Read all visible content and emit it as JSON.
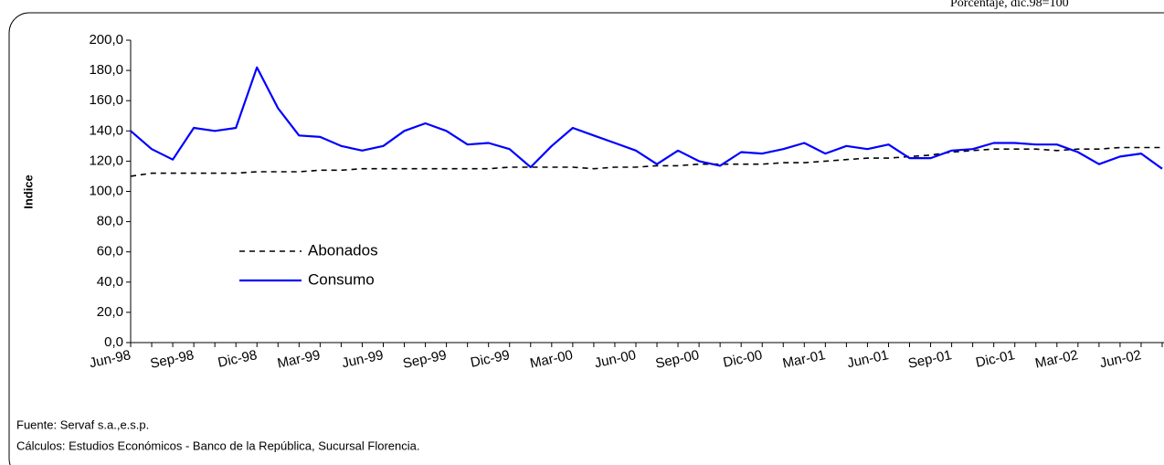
{
  "chart_data": {
    "type": "line",
    "note": "Porcentaje, dic.98=100",
    "y_label": "Indice",
    "source": "Fuente: Servaf s.a.,e.s.p.",
    "calculations": "Cálculos:  Estudios Económicos - Banco de la República, Sucursal Florencia.",
    "categories": [
      "Jun-98",
      null,
      null,
      "Sep-98",
      null,
      null,
      "Dic-98",
      null,
      null,
      "Mar-99",
      null,
      null,
      "Jun-99",
      null,
      null,
      "Sep-99",
      null,
      null,
      "Dic-99",
      null,
      null,
      "Mar-00",
      null,
      null,
      "Jun-00",
      null,
      null,
      "Sep-00",
      null,
      null,
      "Dic-00",
      null,
      null,
      "Mar-01",
      null,
      null,
      "Jun-01",
      null,
      null,
      "Sep-01",
      null,
      null,
      "Dic-01",
      null,
      null,
      "Mar-02",
      null,
      null,
      "Jun-02",
      null
    ],
    "series": [
      {
        "name": "Abonados",
        "color": "#000000",
        "style": "dashed",
        "values": [
          110,
          112,
          112,
          112,
          112,
          112,
          113,
          113,
          113,
          114,
          114,
          115,
          115,
          115,
          115,
          115,
          115,
          115,
          116,
          116,
          116,
          116,
          115,
          116,
          116,
          117,
          117,
          118,
          118,
          118,
          118,
          119,
          119,
          120,
          121,
          122,
          122,
          123,
          124,
          126,
          127,
          128,
          128,
          128,
          127,
          128,
          128,
          129,
          129,
          129
        ]
      },
      {
        "name": "Consumo",
        "color": "#0000ff",
        "style": "solid",
        "values": [
          140,
          128,
          121,
          142,
          140,
          142,
          182,
          155,
          137,
          136,
          130,
          127,
          130,
          140,
          145,
          140,
          131,
          132,
          128,
          116,
          130,
          142,
          137,
          132,
          127,
          118,
          127,
          120,
          117,
          126,
          125,
          128,
          132,
          125,
          130,
          128,
          131,
          122,
          122,
          127,
          128,
          132,
          132,
          131,
          131,
          126,
          118,
          123,
          125,
          115
        ]
      }
    ],
    "ylim": [
      0,
      200
    ],
    "yticks": [
      {
        "value": 0,
        "label": "0,0"
      },
      {
        "value": 20,
        "label": "20,0"
      },
      {
        "value": 40,
        "label": "40,0"
      },
      {
        "value": 60,
        "label": "60,0"
      },
      {
        "value": 80,
        "label": "80,0"
      },
      {
        "value": 100,
        "label": "100,0"
      },
      {
        "value": 120,
        "label": "120,0"
      },
      {
        "value": 140,
        "label": "140,0"
      },
      {
        "value": 160,
        "label": "160,0"
      },
      {
        "value": 180,
        "label": "180,0"
      },
      {
        "value": 200,
        "label": "200,0"
      }
    ],
    "grid": false
  }
}
